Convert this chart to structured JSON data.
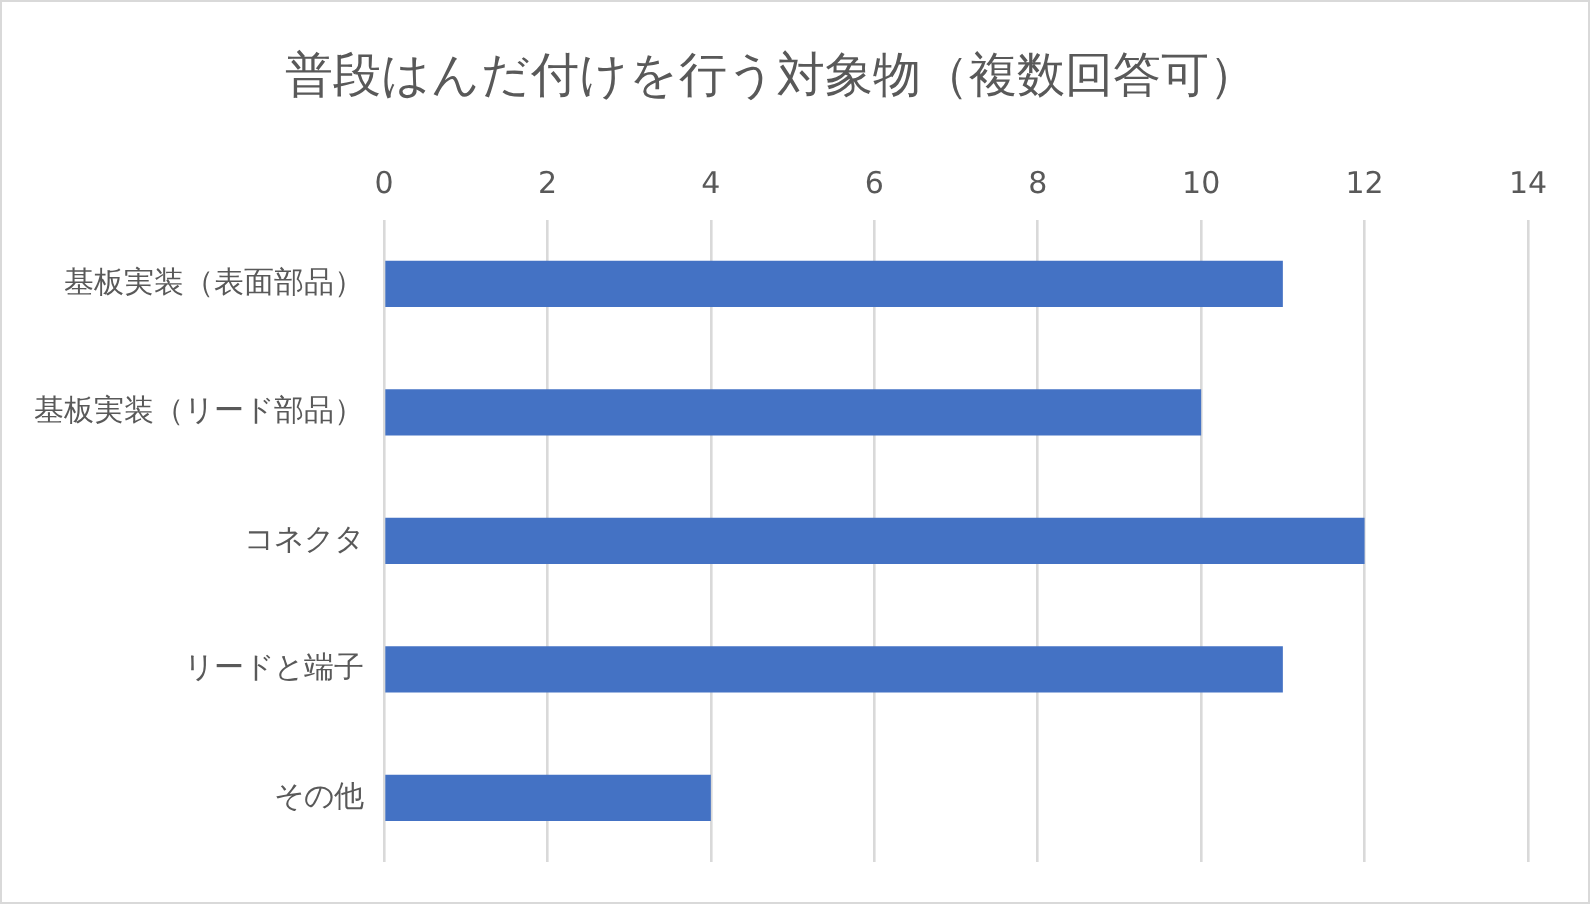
{
  "chart_data": {
    "type": "bar",
    "orientation": "horizontal",
    "title": "普段はんだ付けを行う対象物（複数回答可）",
    "categories": [
      "基板実装（表面部品）",
      "基板実装（リード部品）",
      "コネクタ",
      "リードと端子",
      "その他"
    ],
    "values": [
      11,
      10,
      12,
      11,
      4
    ],
    "color": "#4472c4",
    "xlim": [
      0,
      14
    ],
    "xticks": [
      0,
      2,
      4,
      6,
      8,
      10,
      12,
      14
    ],
    "grid": "x",
    "legend": false
  }
}
